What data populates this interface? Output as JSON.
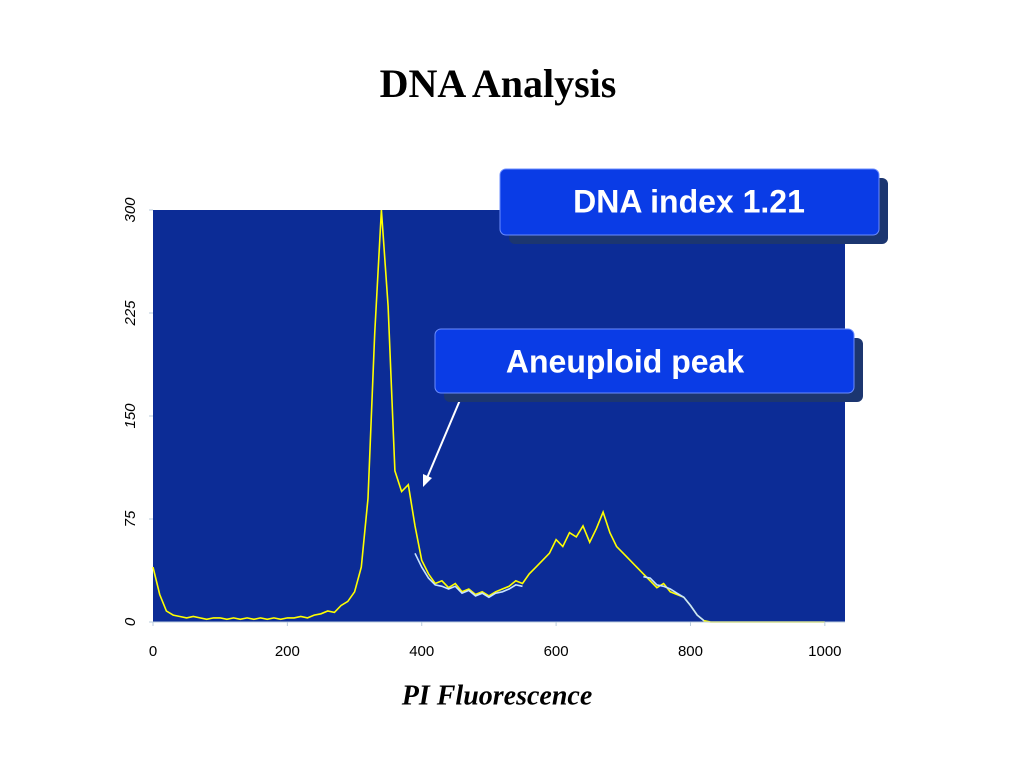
{
  "chart_data": {
    "type": "line",
    "title": "DNA Analysis",
    "xlabel": "PI Fluorescence",
    "annotations": [
      "DNA index 1.21",
      "Aneuploid peak"
    ],
    "xlim": [
      0,
      1030
    ],
    "xticks": [
      0,
      200,
      400,
      600,
      800,
      1000
    ],
    "ylim": [
      0,
      300
    ],
    "yticks": [
      0,
      75,
      150,
      225,
      300
    ],
    "background": "#0c2c96",
    "x": [
      0,
      10,
      20,
      30,
      40,
      50,
      60,
      70,
      80,
      90,
      100,
      110,
      120,
      130,
      140,
      150,
      160,
      170,
      180,
      190,
      200,
      210,
      220,
      230,
      240,
      250,
      260,
      270,
      280,
      290,
      300,
      310,
      320,
      330,
      340,
      350,
      360,
      370,
      380,
      390,
      400,
      410,
      420,
      430,
      440,
      450,
      460,
      470,
      480,
      490,
      500,
      510,
      520,
      530,
      540,
      550,
      560,
      570,
      580,
      590,
      600,
      610,
      620,
      630,
      640,
      650,
      660,
      670,
      680,
      690,
      700,
      710,
      720,
      730,
      740,
      750,
      760,
      770,
      780,
      790,
      800,
      810,
      820,
      830,
      840,
      850,
      860,
      870,
      880,
      890,
      900,
      910,
      920,
      930,
      940,
      950,
      960,
      970,
      980,
      990,
      1000
    ],
    "series": [
      {
        "color": "#ffff00",
        "values": [
          40,
          20,
          8,
          5,
          4,
          3,
          4,
          3,
          2,
          3,
          3,
          2,
          3,
          2,
          3,
          2,
          3,
          2,
          3,
          2,
          3,
          3,
          4,
          3,
          5,
          6,
          8,
          7,
          12,
          15,
          22,
          40,
          90,
          210,
          300,
          230,
          110,
          95,
          100,
          70,
          45,
          35,
          28,
          30,
          25,
          28,
          22,
          24,
          20,
          22,
          19,
          22,
          24,
          26,
          30,
          28,
          35,
          40,
          45,
          50,
          60,
          55,
          65,
          62,
          70,
          58,
          68,
          80,
          65,
          55,
          50,
          45,
          40,
          35,
          30,
          25,
          28,
          22,
          20,
          18,
          12,
          5,
          1,
          0,
          0,
          0,
          0,
          0,
          0,
          0,
          0,
          0,
          0,
          0,
          0,
          0,
          0,
          0,
          0,
          0,
          0
        ]
      },
      {
        "color": "#c6e2ff",
        "values": [
          null,
          null,
          null,
          null,
          null,
          null,
          null,
          null,
          null,
          null,
          null,
          null,
          null,
          null,
          null,
          null,
          null,
          null,
          null,
          null,
          null,
          null,
          null,
          null,
          null,
          null,
          null,
          null,
          null,
          null,
          null,
          null,
          null,
          null,
          null,
          null,
          null,
          null,
          null,
          50,
          40,
          32,
          27,
          26,
          24,
          26,
          21,
          23,
          19,
          21,
          18,
          21,
          22,
          24,
          27,
          26,
          null,
          null,
          null,
          null,
          null,
          null,
          null,
          null,
          null,
          null,
          null,
          null,
          null,
          null,
          null,
          null,
          null,
          33,
          32,
          27,
          26,
          24,
          21,
          18,
          12,
          5,
          1,
          null,
          null,
          null,
          null,
          null,
          null,
          null,
          null,
          null,
          null,
          null,
          null,
          null,
          null,
          null,
          null,
          null,
          null
        ]
      }
    ]
  }
}
